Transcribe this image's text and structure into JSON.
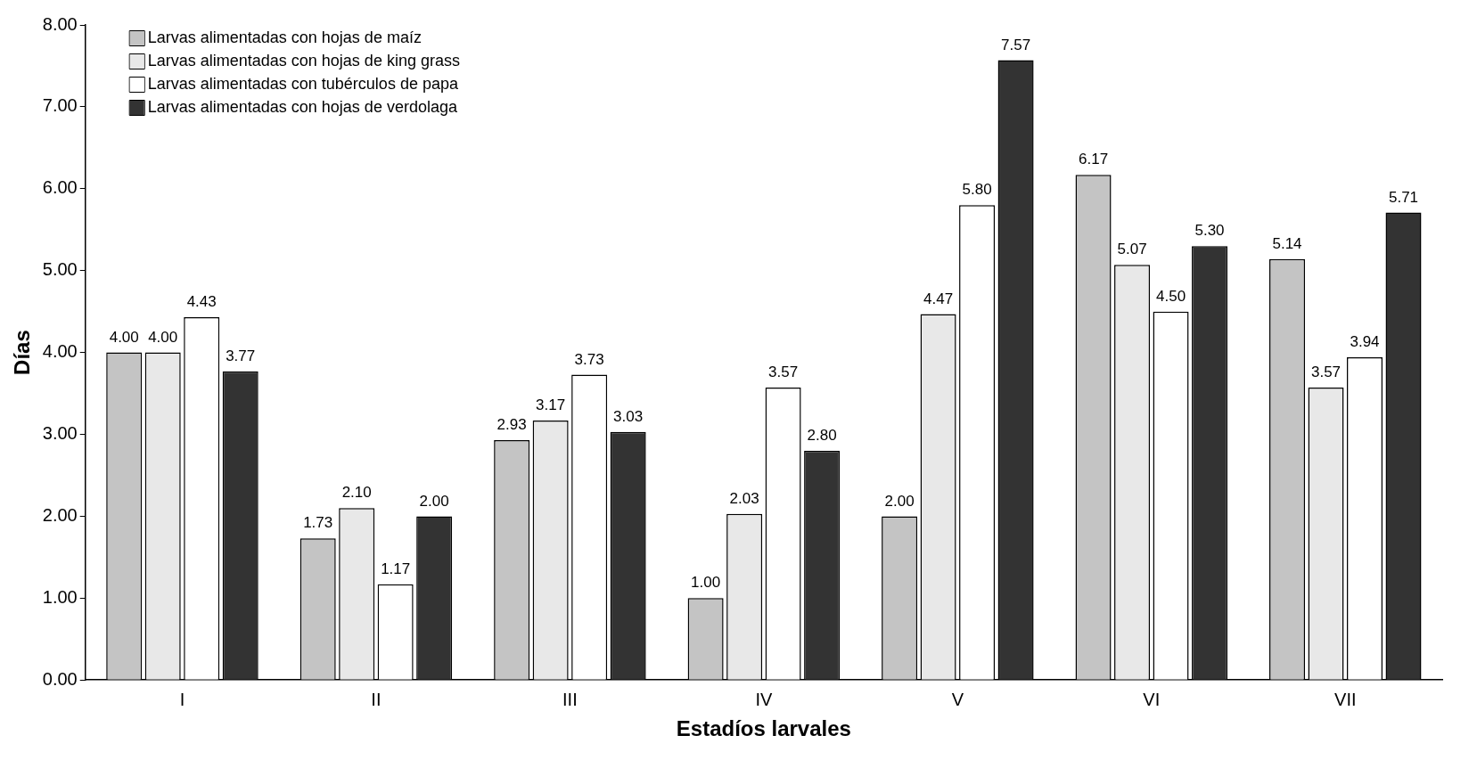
{
  "chart_data": {
    "type": "bar",
    "xlabel": "Estadíos larvales",
    "ylabel": "Días",
    "categories": [
      "I",
      "II",
      "III",
      "IV",
      "V",
      "VI",
      "VII"
    ],
    "series": [
      {
        "name": "Larvas alimentadas con hojas de maíz",
        "color": "#c4c4c4",
        "values": [
          4.0,
          1.73,
          2.93,
          1.0,
          2.0,
          6.17,
          5.14
        ],
        "value_labels": [
          "4.00",
          "1.73",
          "2.93",
          "1.00",
          "2.00",
          "6.17",
          "5.14"
        ]
      },
      {
        "name": "Larvas alimentadas con hojas de king grass",
        "color": "#e8e8e8",
        "values": [
          4.0,
          2.1,
          3.17,
          2.03,
          4.47,
          5.07,
          3.57
        ],
        "value_labels": [
          "4.00",
          "2.10",
          "3.17",
          "2.03",
          "4.47",
          "5.07",
          "3.57"
        ]
      },
      {
        "name": "Larvas alimentadas con tubérculos de papa",
        "color": "#ffffff",
        "values": [
          4.43,
          1.17,
          3.73,
          3.57,
          5.8,
          4.5,
          3.94
        ],
        "value_labels": [
          "4.43",
          "1.17",
          "3.73",
          "3.57",
          "5.80",
          "4.50",
          "3.94"
        ]
      },
      {
        "name": "Larvas alimentadas con hojas de verdolaga",
        "color": "#333333",
        "values": [
          3.77,
          2.0,
          3.03,
          2.8,
          7.57,
          5.3,
          5.71
        ],
        "value_labels": [
          "3.77",
          "2.00",
          "3.03",
          "2.80",
          "7.57",
          "5.30",
          "5.71"
        ]
      }
    ],
    "ylim": [
      0,
      8
    ],
    "yticks": [
      {
        "value": 0,
        "label": "0.00"
      },
      {
        "value": 1,
        "label": "1.00"
      },
      {
        "value": 2,
        "label": "2.00"
      },
      {
        "value": 3,
        "label": "3.00"
      },
      {
        "value": 4,
        "label": "4.00"
      },
      {
        "value": 5,
        "label": "5.00"
      },
      {
        "value": 6,
        "label": "6.00"
      },
      {
        "value": 7,
        "label": "7.00"
      },
      {
        "value": 8,
        "label": "8.00"
      }
    ],
    "grid": false,
    "legend": "top left"
  }
}
